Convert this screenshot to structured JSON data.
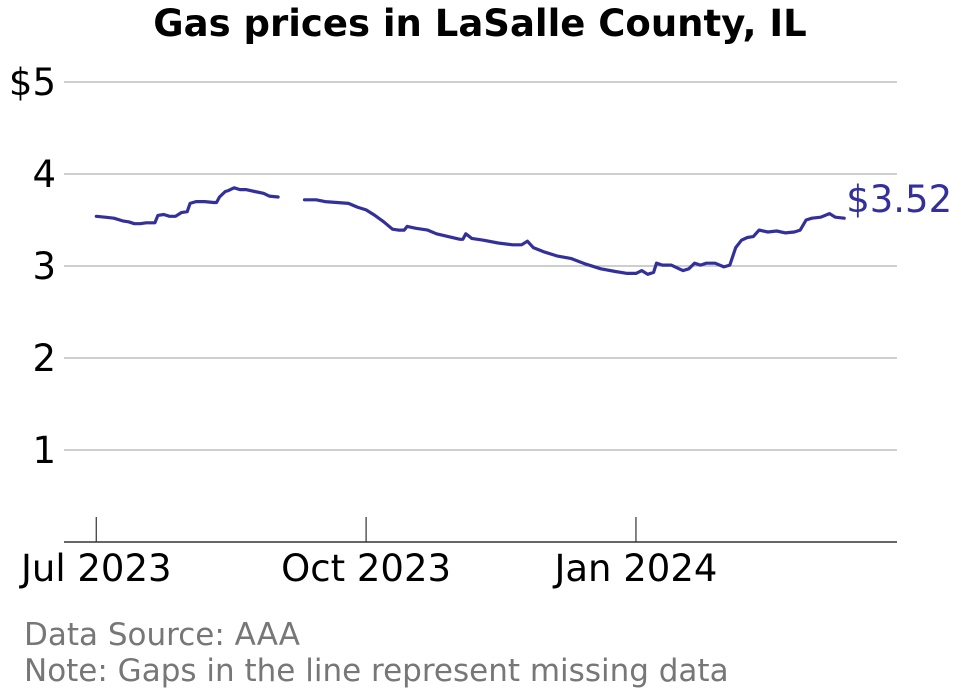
{
  "chart_data": {
    "type": "line",
    "title": "Gas prices in LaSalle County, IL",
    "ylim": [
      0,
      5
    ],
    "y_ticks": [
      {
        "value": 1,
        "label": "1"
      },
      {
        "value": 2,
        "label": "2"
      },
      {
        "value": 3,
        "label": "3"
      },
      {
        "value": 4,
        "label": "4"
      },
      {
        "value": 5,
        "label": "$5"
      }
    ],
    "x_ticks": [
      {
        "date": "2023-07-01",
        "label": "Jul 2023"
      },
      {
        "date": "2023-10-01",
        "label": "Oct 2023"
      },
      {
        "date": "2024-01-01",
        "label": "Jan 2024"
      }
    ],
    "xlim": [
      "2023-06-20",
      "2024-03-30"
    ],
    "grid": true,
    "line_color": "#33309b",
    "last_value_label": "$3.52",
    "series": [
      {
        "segments": [
          [
            [
              "2023-07-01",
              3.54
            ],
            [
              "2023-07-04",
              3.53
            ],
            [
              "2023-07-07",
              3.52
            ],
            [
              "2023-07-10",
              3.49
            ],
            [
              "2023-07-12",
              3.48
            ],
            [
              "2023-07-14",
              3.46
            ],
            [
              "2023-07-16",
              3.46
            ],
            [
              "2023-07-18",
              3.47
            ],
            [
              "2023-07-21",
              3.47
            ],
            [
              "2023-07-22",
              3.55
            ],
            [
              "2023-07-24",
              3.56
            ],
            [
              "2023-07-26",
              3.54
            ],
            [
              "2023-07-28",
              3.54
            ],
            [
              "2023-07-30",
              3.58
            ],
            [
              "2023-08-01",
              3.59
            ],
            [
              "2023-08-02",
              3.68
            ],
            [
              "2023-08-04",
              3.7
            ],
            [
              "2023-08-07",
              3.7
            ],
            [
              "2023-08-10",
              3.69
            ],
            [
              "2023-08-11",
              3.69
            ],
            [
              "2023-08-12",
              3.75
            ],
            [
              "2023-08-14",
              3.81
            ],
            [
              "2023-08-15",
              3.82
            ],
            [
              "2023-08-17",
              3.85
            ],
            [
              "2023-08-19",
              3.83
            ],
            [
              "2023-08-21",
              3.83
            ],
            [
              "2023-08-24",
              3.81
            ],
            [
              "2023-08-27",
              3.79
            ],
            [
              "2023-08-29",
              3.76
            ],
            [
              "2023-09-01",
              3.75
            ]
          ],
          [
            [
              "2023-09-10",
              3.72
            ],
            [
              "2023-09-13",
              3.72
            ],
            [
              "2023-09-14",
              3.72
            ],
            [
              "2023-09-17",
              3.7
            ],
            [
              "2023-09-21",
              3.69
            ],
            [
              "2023-09-25",
              3.68
            ],
            [
              "2023-09-28",
              3.64
            ],
            [
              "2023-10-01",
              3.61
            ],
            [
              "2023-10-04",
              3.55
            ],
            [
              "2023-10-07",
              3.48
            ],
            [
              "2023-10-10",
              3.4
            ],
            [
              "2023-10-12",
              3.39
            ],
            [
              "2023-10-14",
              3.39
            ],
            [
              "2023-10-15",
              3.43
            ],
            [
              "2023-10-18",
              3.41
            ],
            [
              "2023-10-22",
              3.39
            ],
            [
              "2023-10-25",
              3.35
            ],
            [
              "2023-10-29",
              3.32
            ],
            [
              "2023-11-02",
              3.29
            ],
            [
              "2023-11-03",
              3.29
            ],
            [
              "2023-11-04",
              3.35
            ],
            [
              "2023-11-06",
              3.3
            ],
            [
              "2023-11-10",
              3.28
            ],
            [
              "2023-11-15",
              3.25
            ],
            [
              "2023-11-20",
              3.23
            ],
            [
              "2023-11-23",
              3.23
            ],
            [
              "2023-11-25",
              3.27
            ],
            [
              "2023-11-27",
              3.2
            ],
            [
              "2023-12-01",
              3.15
            ],
            [
              "2023-12-05",
              3.11
            ],
            [
              "2023-12-10",
              3.08
            ],
            [
              "2023-12-15",
              3.02
            ],
            [
              "2023-12-20",
              2.97
            ],
            [
              "2023-12-25",
              2.94
            ],
            [
              "2023-12-29",
              2.92
            ],
            [
              "2024-01-01",
              2.92
            ],
            [
              "2024-01-03",
              2.95
            ],
            [
              "2024-01-05",
              2.91
            ],
            [
              "2024-01-07",
              2.93
            ],
            [
              "2024-01-08",
              3.03
            ],
            [
              "2024-01-10",
              3.01
            ],
            [
              "2024-01-13",
              3.01
            ],
            [
              "2024-01-15",
              2.98
            ],
            [
              "2024-01-17",
              2.95
            ],
            [
              "2024-01-19",
              2.97
            ],
            [
              "2024-01-21",
              3.03
            ],
            [
              "2024-01-23",
              3.01
            ],
            [
              "2024-01-25",
              3.03
            ],
            [
              "2024-01-28",
              3.03
            ],
            [
              "2024-01-31",
              2.99
            ],
            [
              "2024-02-02",
              3.01
            ],
            [
              "2024-02-04",
              3.2
            ],
            [
              "2024-02-06",
              3.28
            ],
            [
              "2024-02-08",
              3.31
            ],
            [
              "2024-02-10",
              3.32
            ],
            [
              "2024-02-12",
              3.39
            ],
            [
              "2024-02-15",
              3.37
            ],
            [
              "2024-02-18",
              3.38
            ],
            [
              "2024-02-21",
              3.36
            ],
            [
              "2024-02-24",
              3.37
            ],
            [
              "2024-02-26",
              3.39
            ],
            [
              "2024-02-28",
              3.5
            ],
            [
              "2024-03-01",
              3.52
            ],
            [
              "2024-03-04",
              3.53
            ],
            [
              "2024-03-07",
              3.57
            ],
            [
              "2024-03-09",
              3.53
            ],
            [
              "2024-03-12",
              3.52
            ]
          ]
        ]
      }
    ]
  },
  "footer": {
    "source": "Data Source: AAA",
    "note": "Note: Gaps in the line represent missing data"
  }
}
